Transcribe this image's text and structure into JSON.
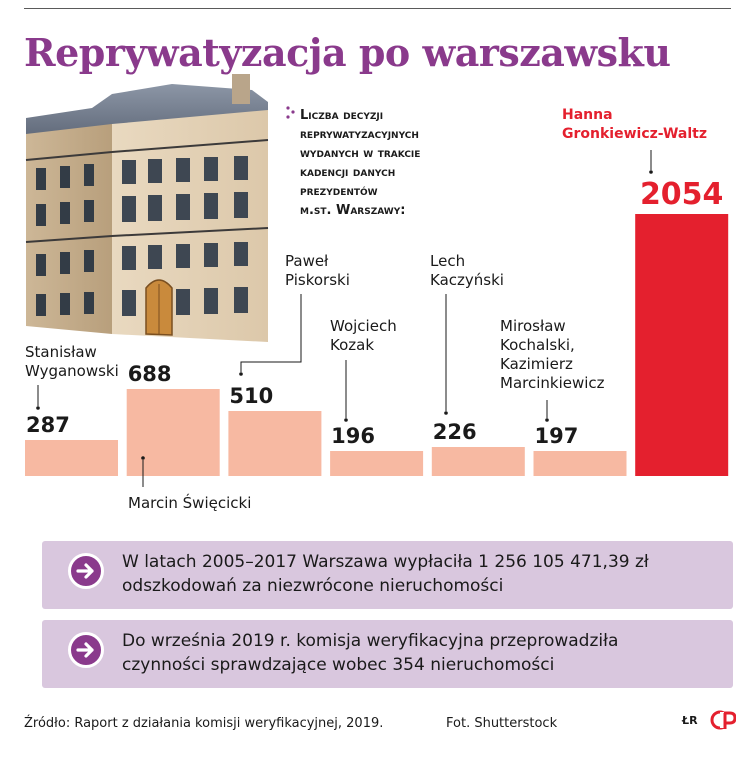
{
  "title": "Reprywatyzacja po warszawsku",
  "subtitle_lines": [
    "Liczba decyzji",
    "reprywatyzacyjnych",
    "wydanych w trakcie",
    "kadencji danych",
    "prezydentów",
    "m.st. Warszawy:"
  ],
  "colors": {
    "title": "#8a3a8c",
    "bar": "#f7b9a2",
    "highlight_bar": "#e4202e",
    "highlight_text": "#e4202e",
    "info_box": "#d9c7de",
    "info_circle": "#8a3a8c"
  },
  "chart_data": {
    "type": "bar",
    "title": "Liczba decyzji reprywatyzacyjnych wydanych w trakcie kadencji danych prezydentów m.st. Warszawy:",
    "categories": [
      [
        "Stanisław",
        "Wyganowski"
      ],
      [
        "Marcin Święcicki"
      ],
      [
        "Paweł",
        "Piskorski"
      ],
      [
        "Wojciech",
        "Kozak"
      ],
      [
        "Lech",
        "Kaczyński"
      ],
      [
        "Mirosław",
        "Kochalski,",
        "Kazimierz",
        "Marcinkiewicz"
      ],
      [
        "Hanna",
        "Gronkiewicz-Waltz"
      ]
    ],
    "values": [
      287,
      688,
      510,
      196,
      226,
      197,
      2054
    ],
    "value_labels": [
      "287",
      "688",
      "510",
      "196",
      "226",
      "197",
      "2054"
    ],
    "highlight_index": 6
  },
  "info": [
    {
      "icon": "arrow-right-icon",
      "lines": [
        "W latach 2005–2017 Warszawa wypłaciła 1 256 105 471,39 zł",
        "odszkodowań za niezwrócone nieruchomości"
      ]
    },
    {
      "icon": "arrow-right-icon",
      "lines": [
        "Do września 2019 r. komisja weryfikacyjna przeprowadziła",
        "czynności sprawdzające wobec 354 nieruchomości"
      ]
    }
  ],
  "footer": {
    "source": "Źródło: Raport z działania komisji weryfikacyjnej, 2019.",
    "photo": "Fot. Shutterstock",
    "brand": "ŁR"
  }
}
